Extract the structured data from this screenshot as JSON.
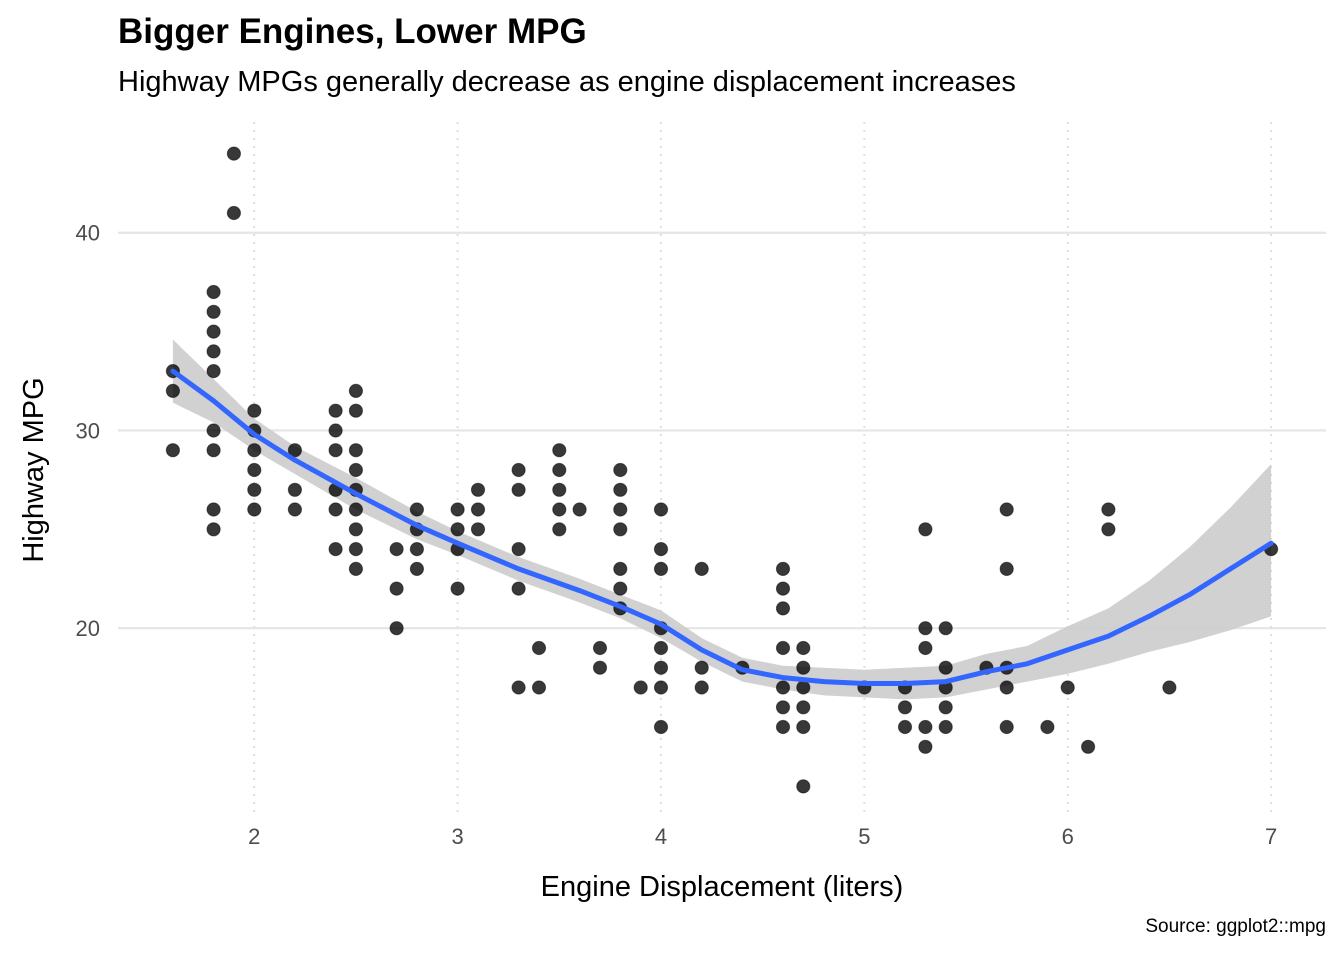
{
  "chart_data": {
    "type": "scatter",
    "title": "Bigger Engines, Lower MPG",
    "subtitle": "Highway MPGs generally decrease as engine displacement increases",
    "caption": "Source: ggplot2::mpg",
    "xlabel": "Engine Displacement (liters)",
    "ylabel": "Highway MPG",
    "xlim": [
      1.33,
      7.27
    ],
    "ylim": [
      10.4,
      45.6
    ],
    "x_ticks": [
      2,
      3,
      4,
      5,
      6,
      7
    ],
    "y_ticks": [
      20,
      30,
      40
    ],
    "grid": "major horizontal solid, major vertical dotted",
    "point_color": "#000000",
    "smooth_color": "#3366ff",
    "ribbon_color": "#cccccc",
    "points": [
      [
        1.6,
        33
      ],
      [
        1.6,
        32
      ],
      [
        1.6,
        29
      ],
      [
        1.8,
        37
      ],
      [
        1.8,
        36
      ],
      [
        1.8,
        35
      ],
      [
        1.8,
        34
      ],
      [
        1.8,
        33
      ],
      [
        1.8,
        30
      ],
      [
        1.8,
        29
      ],
      [
        1.8,
        26
      ],
      [
        1.8,
        25
      ],
      [
        1.9,
        44
      ],
      [
        1.9,
        41
      ],
      [
        2.0,
        31
      ],
      [
        2.0,
        30
      ],
      [
        2.0,
        29
      ],
      [
        2.0,
        28
      ],
      [
        2.0,
        27
      ],
      [
        2.0,
        26
      ],
      [
        2.2,
        29
      ],
      [
        2.2,
        27
      ],
      [
        2.2,
        26
      ],
      [
        2.4,
        31
      ],
      [
        2.4,
        30
      ],
      [
        2.4,
        29
      ],
      [
        2.4,
        27
      ],
      [
        2.4,
        26
      ],
      [
        2.4,
        24
      ],
      [
        2.5,
        32
      ],
      [
        2.5,
        31
      ],
      [
        2.5,
        29
      ],
      [
        2.5,
        28
      ],
      [
        2.5,
        27
      ],
      [
        2.5,
        26
      ],
      [
        2.5,
        25
      ],
      [
        2.5,
        24
      ],
      [
        2.5,
        23
      ],
      [
        2.7,
        24
      ],
      [
        2.7,
        22
      ],
      [
        2.7,
        20
      ],
      [
        2.8,
        26
      ],
      [
        2.8,
        25
      ],
      [
        2.8,
        24
      ],
      [
        2.8,
        23
      ],
      [
        3.0,
        26
      ],
      [
        3.0,
        25
      ],
      [
        3.0,
        24
      ],
      [
        3.0,
        22
      ],
      [
        3.1,
        27
      ],
      [
        3.1,
        26
      ],
      [
        3.1,
        25
      ],
      [
        3.3,
        28
      ],
      [
        3.3,
        27
      ],
      [
        3.3,
        24
      ],
      [
        3.3,
        22
      ],
      [
        3.3,
        17
      ],
      [
        3.4,
        19
      ],
      [
        3.4,
        17
      ],
      [
        3.5,
        29
      ],
      [
        3.5,
        28
      ],
      [
        3.5,
        27
      ],
      [
        3.5,
        26
      ],
      [
        3.5,
        25
      ],
      [
        3.6,
        26
      ],
      [
        3.7,
        19
      ],
      [
        3.7,
        18
      ],
      [
        3.8,
        28
      ],
      [
        3.8,
        27
      ],
      [
        3.8,
        26
      ],
      [
        3.8,
        25
      ],
      [
        3.8,
        23
      ],
      [
        3.8,
        22
      ],
      [
        3.8,
        21
      ],
      [
        3.9,
        17
      ],
      [
        4.0,
        26
      ],
      [
        4.0,
        24
      ],
      [
        4.0,
        23
      ],
      [
        4.0,
        20
      ],
      [
        4.0,
        19
      ],
      [
        4.0,
        18
      ],
      [
        4.0,
        17
      ],
      [
        4.0,
        15
      ],
      [
        4.2,
        23
      ],
      [
        4.2,
        18
      ],
      [
        4.2,
        17
      ],
      [
        4.4,
        18
      ],
      [
        4.6,
        23
      ],
      [
        4.6,
        22
      ],
      [
        4.6,
        21
      ],
      [
        4.6,
        19
      ],
      [
        4.6,
        17
      ],
      [
        4.6,
        16
      ],
      [
        4.6,
        15
      ],
      [
        4.7,
        19
      ],
      [
        4.7,
        18
      ],
      [
        4.7,
        17
      ],
      [
        4.7,
        16
      ],
      [
        4.7,
        15
      ],
      [
        4.7,
        12
      ],
      [
        5.0,
        17
      ],
      [
        5.2,
        17
      ],
      [
        5.2,
        16
      ],
      [
        5.2,
        15
      ],
      [
        5.3,
        25
      ],
      [
        5.3,
        20
      ],
      [
        5.3,
        19
      ],
      [
        5.3,
        15
      ],
      [
        5.3,
        14
      ],
      [
        5.4,
        20
      ],
      [
        5.4,
        18
      ],
      [
        5.4,
        17
      ],
      [
        5.4,
        16
      ],
      [
        5.4,
        15
      ],
      [
        5.6,
        18
      ],
      [
        5.7,
        26
      ],
      [
        5.7,
        23
      ],
      [
        5.7,
        18
      ],
      [
        5.7,
        17
      ],
      [
        5.7,
        15
      ],
      [
        5.9,
        15
      ],
      [
        6.0,
        17
      ],
      [
        6.1,
        14
      ],
      [
        6.2,
        26
      ],
      [
        6.2,
        25
      ],
      [
        6.5,
        17
      ],
      [
        7.0,
        24
      ]
    ],
    "smooth": {
      "x": [
        1.6,
        1.8,
        2.0,
        2.2,
        2.5,
        2.8,
        3.0,
        3.3,
        3.6,
        3.8,
        4.0,
        4.2,
        4.4,
        4.6,
        4.8,
        5.0,
        5.2,
        5.4,
        5.6,
        5.8,
        6.0,
        6.2,
        6.4,
        6.6,
        6.8,
        7.0
      ],
      "y": [
        33.0,
        31.5,
        29.8,
        28.5,
        26.8,
        25.2,
        24.3,
        23.0,
        21.9,
        21.1,
        20.2,
        18.9,
        17.9,
        17.5,
        17.3,
        17.2,
        17.2,
        17.3,
        17.8,
        18.2,
        18.9,
        19.6,
        20.6,
        21.7,
        23.0,
        24.3
      ],
      "lower": [
        31.4,
        30.4,
        29.0,
        27.8,
        26.0,
        24.5,
        23.7,
        22.4,
        21.3,
        20.5,
        19.5,
        18.3,
        17.3,
        16.9,
        16.6,
        16.5,
        16.4,
        16.5,
        16.9,
        17.3,
        17.7,
        18.2,
        18.8,
        19.3,
        19.9,
        20.6
      ],
      "upper": [
        34.6,
        32.6,
        30.6,
        29.2,
        27.6,
        25.9,
        24.9,
        23.6,
        22.5,
        21.7,
        20.9,
        19.5,
        18.5,
        18.1,
        18.0,
        17.9,
        18.0,
        18.1,
        18.7,
        19.1,
        20.1,
        21.0,
        22.4,
        24.1,
        26.1,
        28.3
      ]
    }
  }
}
